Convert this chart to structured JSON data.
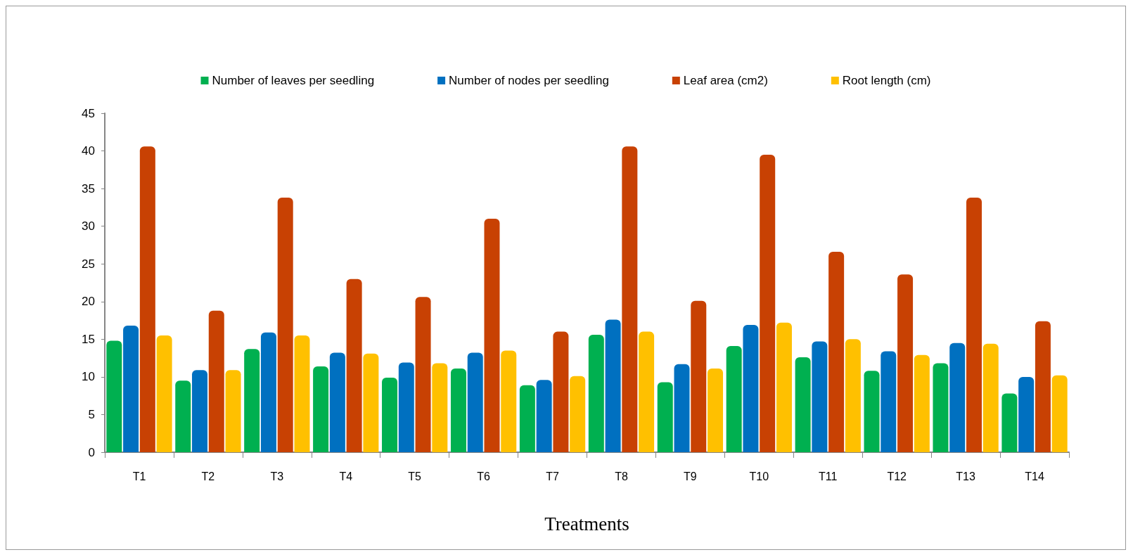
{
  "chart_data": {
    "type": "bar",
    "xlabel": "Treatments",
    "categories": [
      "T1",
      "T2",
      "T3",
      "T4",
      "T5",
      "T6",
      "T7",
      "T8",
      "T9",
      "T10",
      "T11",
      "T12",
      "T13",
      "T14"
    ],
    "series": [
      {
        "name": "Number of leaves per seedling",
        "color": "#00b050",
        "values": [
          14.8,
          9.5,
          13.7,
          11.4,
          9.9,
          11.1,
          8.9,
          15.6,
          9.3,
          14.1,
          12.6,
          10.8,
          11.8,
          7.8
        ]
      },
      {
        "name": "Number of nodes per seedling",
        "color": "#0070c0",
        "values": [
          16.8,
          10.9,
          15.9,
          13.2,
          11.9,
          13.2,
          9.6,
          17.6,
          11.7,
          16.9,
          14.7,
          13.4,
          14.5,
          10.0
        ]
      },
      {
        "name": "Leaf area (cm2)",
        "color": "#c84103",
        "values": [
          40.6,
          18.8,
          33.8,
          23.0,
          20.6,
          31.0,
          16.0,
          40.6,
          20.1,
          39.5,
          26.6,
          23.6,
          33.8,
          17.4
        ]
      },
      {
        "name": "Root length (cm)",
        "color": "#ffc000",
        "values": [
          15.5,
          10.9,
          15.5,
          13.1,
          11.8,
          13.5,
          10.1,
          16.0,
          11.1,
          17.2,
          15.0,
          12.9,
          14.4,
          10.2
        ]
      }
    ],
    "ylim": [
      0,
      45
    ],
    "yticks": [
      0,
      5,
      10,
      15,
      20,
      25,
      30,
      35,
      40,
      45
    ],
    "grid": false,
    "legend": "top"
  }
}
